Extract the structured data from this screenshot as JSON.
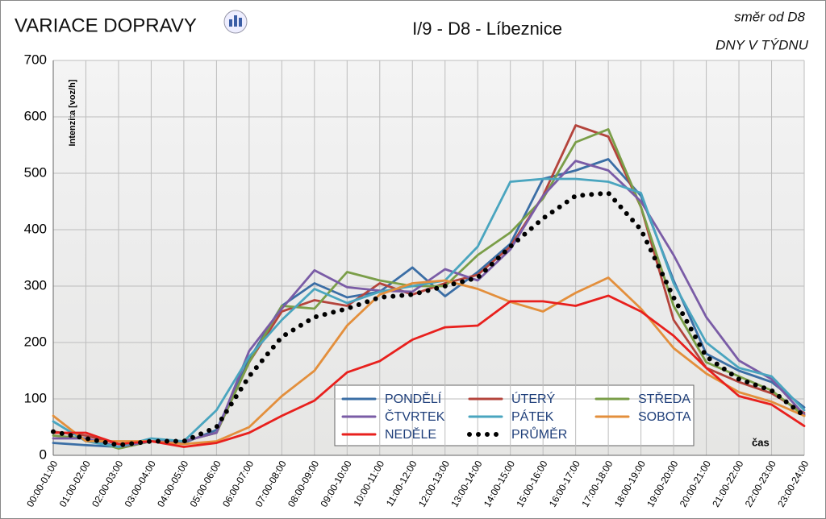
{
  "chart_data": {
    "type": "line",
    "title": "VARIACE DOPRAVY",
    "subtitle": "I/9 - D8 - Líbeznice",
    "direction": "směr od D8",
    "note": "DNY V TÝDNU",
    "y_label": "Intenzita [voz/h]",
    "x_label": "čas",
    "categories": [
      "00:00-01:00",
      "01:00-02:00",
      "02:00-03:00",
      "03:00-04:00",
      "04:00-05:00",
      "05:00-06:00",
      "06:00-07:00",
      "07:00-08:00",
      "08:00-09:00",
      "09:00-10:00",
      "10:00-11:00",
      "11:00-12:00",
      "12:00-13:00",
      "13:00-14:00",
      "14:00-15:00",
      "15:00-16:00",
      "16:00-17:00",
      "17:00-18:00",
      "18:00-19:00",
      "19:00-20:00",
      "20:00-21:00",
      "21:00-22:00",
      "22:00-23:00",
      "23:00-24:00"
    ],
    "ylim": [
      0,
      700
    ],
    "yticks": [
      0,
      100,
      200,
      300,
      400,
      500,
      600,
      700
    ],
    "grid": true,
    "series": [
      {
        "name": "PONDĚLÍ",
        "color": "#3b6ea5",
        "values": [
          22,
          18,
          15,
          25,
          22,
          45,
          170,
          265,
          305,
          280,
          290,
          333,
          282,
          325,
          375,
          490,
          505,
          525,
          460,
          310,
          180,
          150,
          130,
          85
        ]
      },
      {
        "name": "ÚTERÝ",
        "color": "#b4443c",
        "values": [
          42,
          35,
          20,
          25,
          25,
          40,
          165,
          255,
          275,
          265,
          305,
          285,
          305,
          320,
          370,
          460,
          585,
          565,
          440,
          240,
          155,
          130,
          110,
          75
        ]
      },
      {
        "name": "STŘEDA",
        "color": "#7a9e48",
        "values": [
          35,
          30,
          12,
          25,
          25,
          40,
          165,
          265,
          260,
          325,
          310,
          300,
          300,
          355,
          395,
          455,
          555,
          578,
          440,
          265,
          165,
          140,
          115,
          70
        ]
      },
      {
        "name": "ČTVRTEK",
        "color": "#7a5ca6",
        "values": [
          30,
          30,
          15,
          25,
          25,
          40,
          185,
          260,
          328,
          298,
          292,
          290,
          330,
          310,
          365,
          460,
          522,
          505,
          450,
          355,
          245,
          168,
          135,
          72
        ]
      },
      {
        "name": "PÁTEK",
        "color": "#4aa5bf",
        "values": [
          60,
          25,
          15,
          30,
          25,
          80,
          175,
          240,
          295,
          270,
          290,
          300,
          310,
          370,
          485,
          490,
          490,
          485,
          465,
          305,
          200,
          155,
          140,
          80
        ]
      },
      {
        "name": "SOBOTA",
        "color": "#e38f3c",
        "values": [
          70,
          25,
          25,
          25,
          20,
          25,
          50,
          105,
          150,
          230,
          285,
          305,
          310,
          295,
          272,
          255,
          288,
          315,
          260,
          190,
          145,
          112,
          95,
          70
        ]
      },
      {
        "name": "NEDĚLE",
        "color": "#e8201d",
        "values": [
          40,
          40,
          20,
          25,
          15,
          22,
          40,
          70,
          97,
          147,
          167,
          205,
          227,
          230,
          273,
          273,
          265,
          283,
          255,
          212,
          155,
          105,
          90,
          52
        ]
      },
      {
        "name": "PRŮMĚR",
        "color": "#000000",
        "style": "dotted",
        "values": [
          42,
          30,
          18,
          25,
          25,
          50,
          140,
          210,
          245,
          260,
          280,
          285,
          300,
          315,
          370,
          420,
          460,
          465,
          400,
          280,
          175,
          135,
          115,
          70
        ]
      }
    ]
  }
}
